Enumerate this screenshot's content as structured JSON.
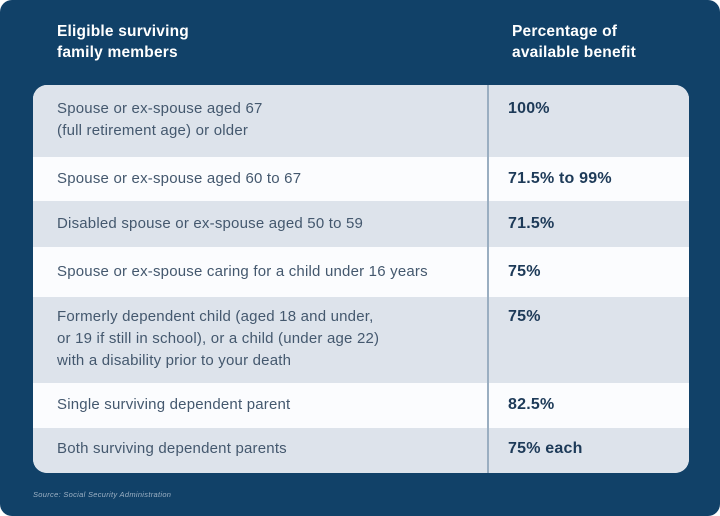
{
  "header": {
    "col1": "Eligible surviving\nfamily members",
    "col2": "Percentage of\navailable benefit"
  },
  "table": {
    "rows": [
      {
        "member": "Spouse or ex-spouse aged 67\n(full retirement age) or older",
        "percent": "100%"
      },
      {
        "member": "Spouse or ex-spouse aged 60 to 67",
        "percent": "71.5% to 99%"
      },
      {
        "member": "Disabled spouse or ex-spouse aged 50 to 59",
        "percent": "71.5%"
      },
      {
        "member": "Spouse or ex-spouse caring for a child under 16 years",
        "percent": "75%"
      },
      {
        "member": "Formerly dependent child (aged 18 and under,\nor 19 if still in school), or a child (under age 22)\nwith a disability prior to your death",
        "percent": "75%"
      },
      {
        "member": "Single surviving dependent parent",
        "percent": "82.5%"
      },
      {
        "member": "Both surviving dependent parents",
        "percent": "75% each"
      }
    ]
  },
  "source": "Source: Social Security Administration",
  "colors": {
    "background": "#114168",
    "row_shade": "#dde3eb",
    "row_plain": "#fbfcfe",
    "divider": "#9aaec1",
    "header_text": "#ffffff",
    "member_text": "#44586e",
    "percent_text": "#1d3a58"
  },
  "chart_data": {
    "type": "table",
    "title": "",
    "columns": [
      "Eligible surviving family members",
      "Percentage of available benefit"
    ],
    "rows": [
      [
        "Spouse or ex-spouse aged 67 (full retirement age) or older",
        "100%"
      ],
      [
        "Spouse or ex-spouse aged 60 to 67",
        "71.5% to 99%"
      ],
      [
        "Disabled spouse or ex-spouse aged 50 to 59",
        "71.5%"
      ],
      [
        "Spouse or ex-spouse caring for a child under 16 years",
        "75%"
      ],
      [
        "Formerly dependent child (aged 18 and under, or 19 if still in school), or a child (under age 22) with a disability prior to your death",
        "75%"
      ],
      [
        "Single surviving dependent parent",
        "82.5%"
      ],
      [
        "Both surviving dependent parents",
        "75% each"
      ]
    ],
    "source": "Source: Social Security Administration"
  }
}
